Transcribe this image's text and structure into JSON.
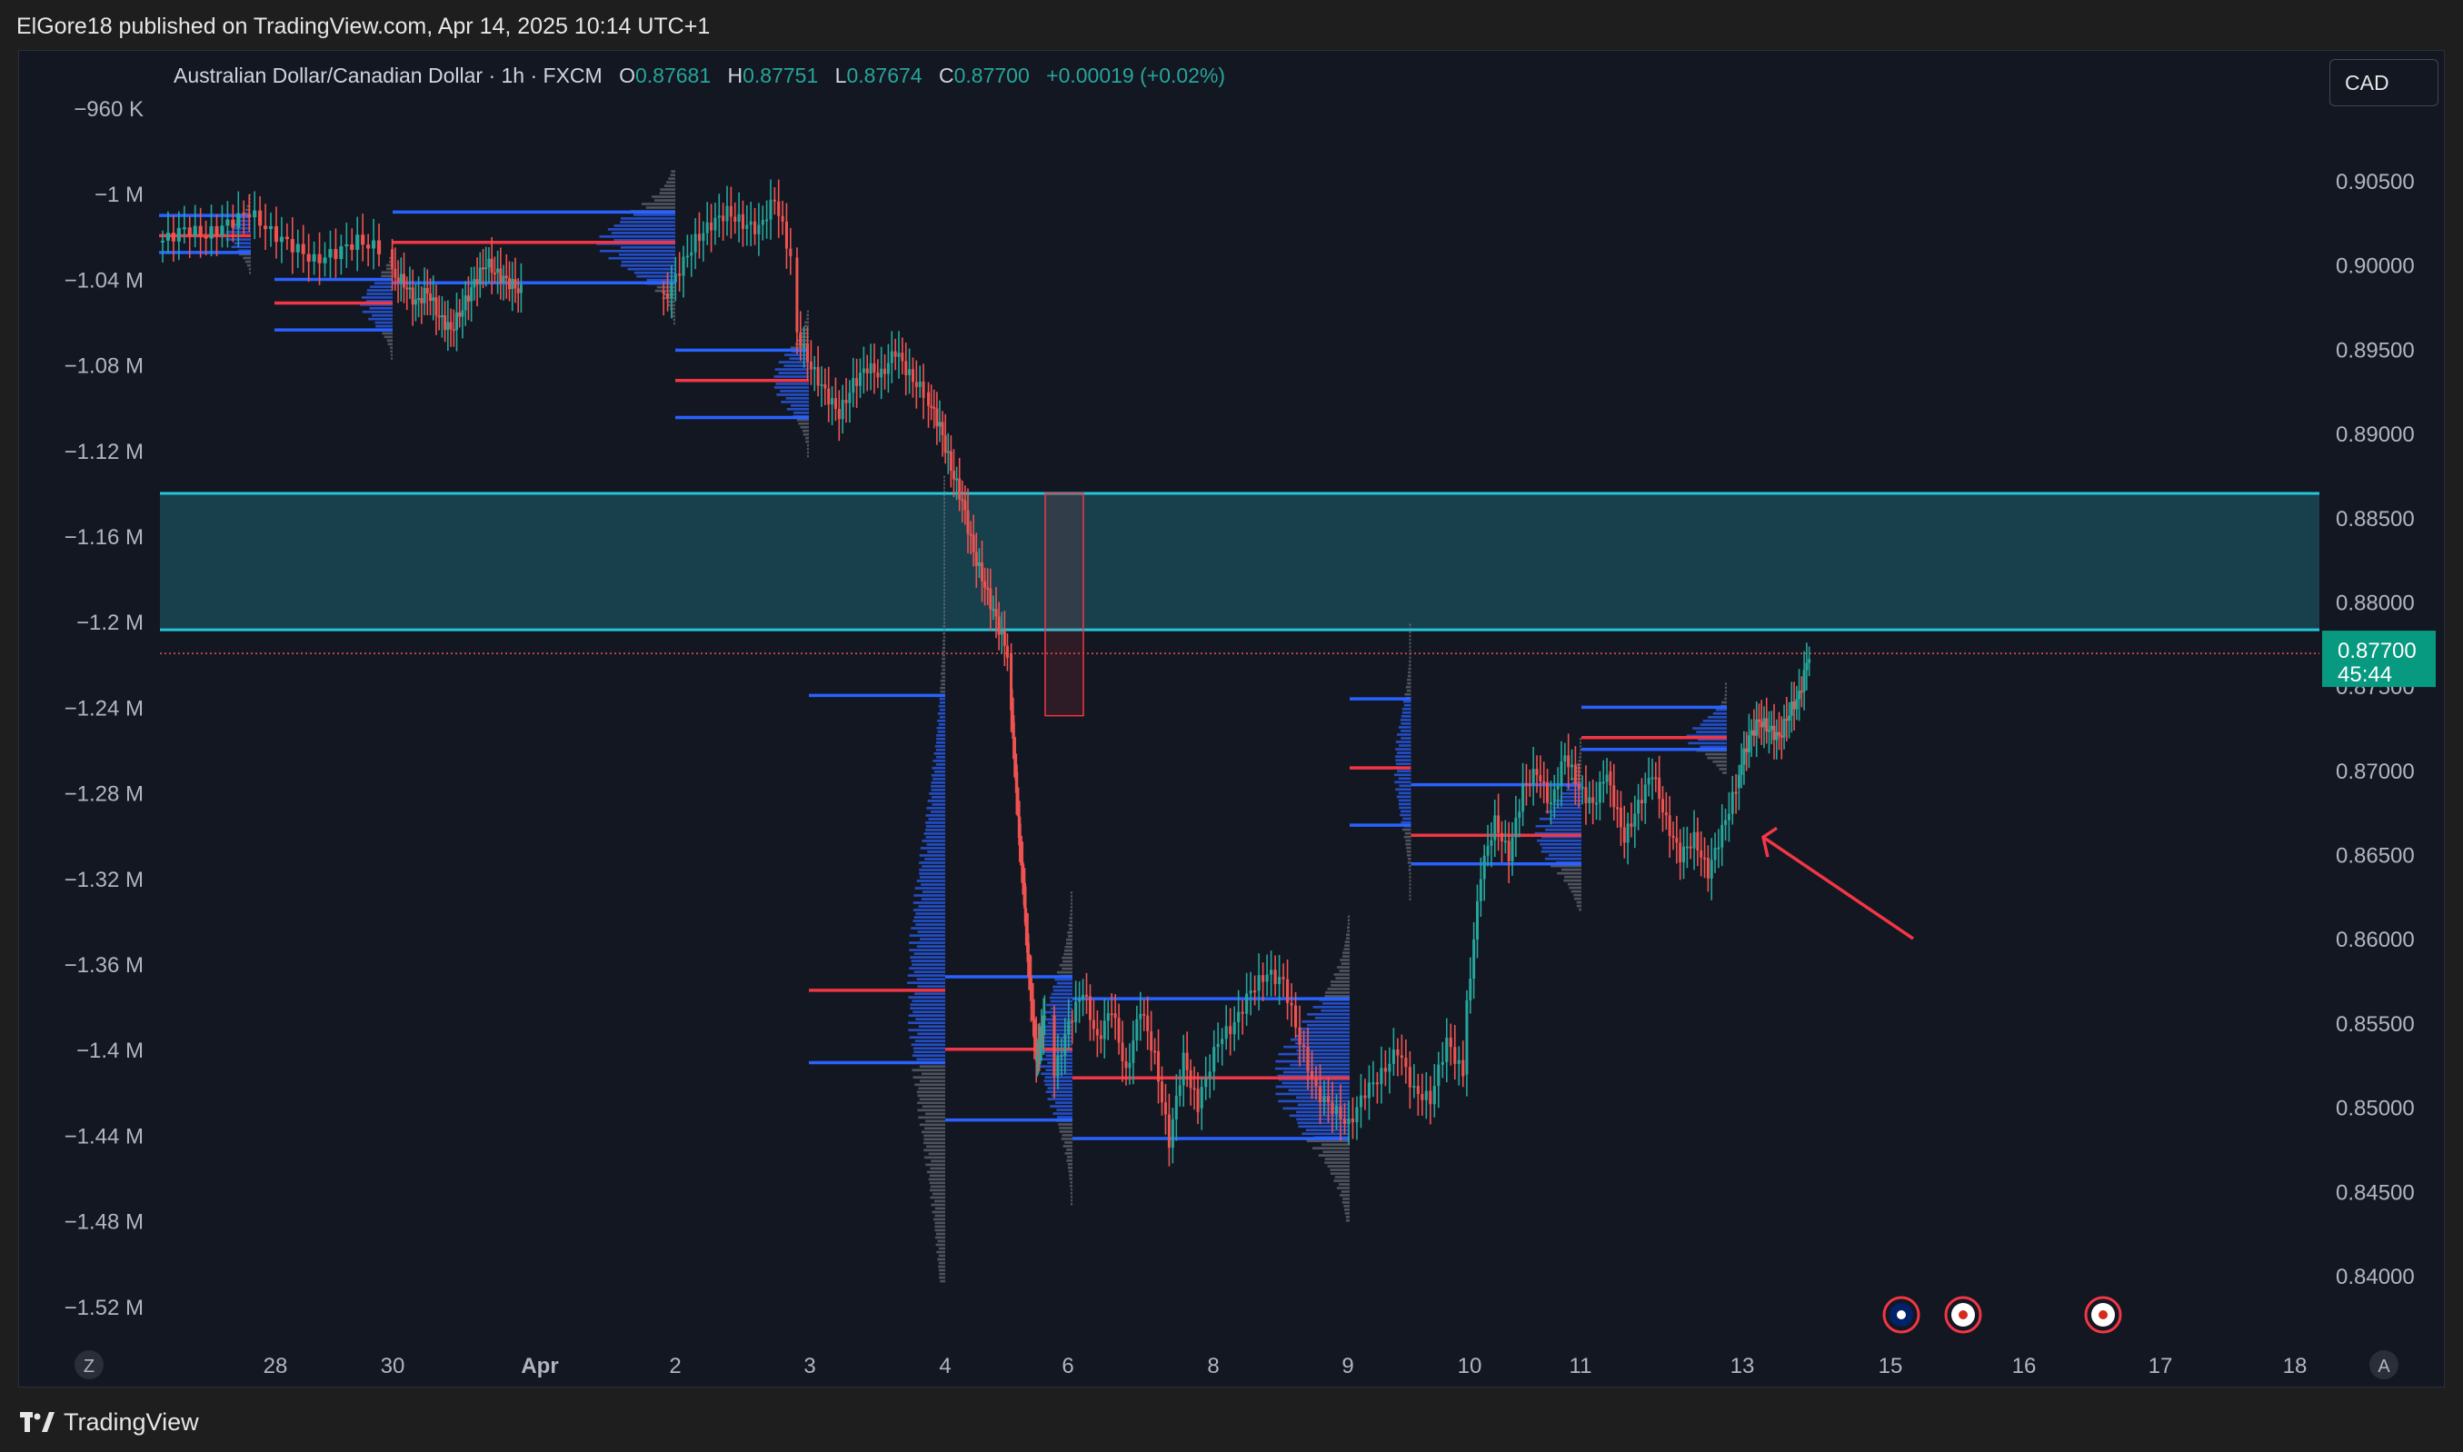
{
  "header": {
    "published_text": "ElGore18 published on TradingView.com, Apr 14, 2025 10:14 UTC+1"
  },
  "legend": {
    "symbol": "Australian Dollar/Canadian Dollar · 1h · FXCM",
    "open_label": "O",
    "open": "0.87681",
    "high_label": "H",
    "high": "0.87751",
    "low_label": "L",
    "low": "0.87674",
    "close_label": "C",
    "close": "0.87700",
    "change": "+0.00019 (+0.02%)"
  },
  "currency_button": {
    "label": "CAD"
  },
  "price_tag": {
    "price": "0.87700",
    "countdown": "45:44"
  },
  "footer": {
    "brand": "TradingView"
  },
  "axis_buttons": {
    "left": "Z",
    "right": "A"
  },
  "icons": [
    "australia-flag-icon",
    "canada-flag-icon",
    "canada-flag-icon",
    "tradingview-logo-icon"
  ],
  "colors": {
    "up": "#26a69a",
    "down": "#ef5350",
    "zone": "#26c6da",
    "level_red": "#f23645",
    "level_blue": "#2962ff",
    "price_tag": "#089981",
    "arrow": "#f23645"
  },
  "chart_data": {
    "type": "candlestick",
    "symbol": "AUDCAD",
    "timeframe": "1h",
    "right_axis": {
      "ticks": [
        "0.90500",
        "0.90000",
        "0.89500",
        "0.89000",
        "0.88500",
        "0.88000",
        "0.87500",
        "0.87000",
        "0.86500",
        "0.86000",
        "0.85500",
        "0.85000",
        "0.84500",
        "0.84000"
      ],
      "range": [
        0.8365,
        0.9082
      ]
    },
    "left_axis": {
      "ticks": [
        "−960 K",
        "−1 M",
        "−1.04 M",
        "−1.08 M",
        "−1.12 M",
        "−1.16 M",
        "−1.2 M",
        "−1.24 M",
        "−1.28 M",
        "−1.32 M",
        "−1.36 M",
        "−1.4 M",
        "−1.44 M",
        "−1.48 M",
        "−1.52 M"
      ]
    },
    "x_axis": {
      "ticks": [
        "28",
        "30",
        "Apr",
        "2",
        "3",
        "4",
        "6",
        "8",
        "9",
        "10",
        "11",
        "13",
        "15",
        "16",
        "17",
        "18"
      ]
    },
    "current_price": 0.877,
    "zone": {
      "top": 0.8865,
      "bottom": 0.8784
    },
    "price_path": [
      [
        0.9015,
        0.9022,
        0.9018,
        0.9025,
        0.9032,
        0.902,
        0.9012,
        0.9003,
        0.9008,
        0.9015,
        0.901
      ],
      [
        0.8995,
        0.899,
        0.8978,
        0.8985,
        0.897,
        0.8962,
        0.8975,
        0.899,
        0.9002,
        0.8995,
        0.899,
        0.8985
      ],
      [
        0.898,
        0.8998,
        0.9015,
        0.9025,
        0.9032,
        0.9025,
        0.9022,
        0.904,
        0.9005
      ],
      [
        0.896,
        0.894,
        0.8925,
        0.8912,
        0.893,
        0.894,
        0.8935,
        0.895,
        0.8935,
        0.8925
      ],
      [
        0.892,
        0.8905,
        0.888,
        0.886,
        0.883,
        0.881,
        0.879,
        0.877
      ],
      [
        0.874,
        0.87,
        0.866,
        0.863,
        0.859,
        0.856,
        0.853,
        0.854,
        0.8555
      ],
      [
        0.852,
        0.855,
        0.857,
        0.854,
        0.856,
        0.852,
        0.856,
        0.853,
        0.848,
        0.853,
        0.85
      ],
      [
        0.851,
        0.854,
        0.855,
        0.857,
        0.858,
        0.8575,
        0.854,
        0.851,
        0.85,
        0.849,
        0.851,
        0.852,
        0.8535,
        0.851,
        0.8505,
        0.854,
        0.852
      ],
      [
        0.856,
        0.864,
        0.867,
        0.865,
        0.869,
        0.87,
        0.868,
        0.871,
        0.869,
        0.868,
        0.87
      ],
      [
        0.869,
        0.866,
        0.868,
        0.87,
        0.867,
        0.865,
        0.866,
        0.864,
        0.8665,
        0.869
      ],
      [
        0.87,
        0.872,
        0.873,
        0.8725,
        0.872,
        0.8735,
        0.8745,
        0.877
      ]
    ],
    "volume_profiles": [
      {
        "x0": "Mar 27",
        "x1": "Mar 29",
        "vah": 0.903,
        "poc": 0.9018,
        "val": 0.9008
      },
      {
        "x0": "Mar 30",
        "x1": "Apr 1",
        "vah": 0.8992,
        "poc": 0.8978,
        "val": 0.8962
      },
      {
        "x0": "Apr 1",
        "x1": "Apr 3",
        "vah": 0.9032,
        "poc": 0.9014,
        "val": 0.899
      },
      {
        "x0": "Apr 3",
        "x1": "Apr 4",
        "vah": 0.895,
        "poc": 0.8932,
        "val": 0.891
      },
      {
        "x0": "Apr 4",
        "x1": "Apr 6",
        "vah": 0.8745,
        "poc": 0.857,
        "val": 0.8527
      },
      {
        "x0": "Apr 6",
        "x1": "Apr 8",
        "vah": 0.8578,
        "poc": 0.8535,
        "val": 0.8493
      },
      {
        "x0": "Apr 8",
        "x1": "Apr 10",
        "vah": 0.8565,
        "poc": 0.8518,
        "val": 0.8482
      },
      {
        "x0": "Apr 10",
        "x1": "Apr 11",
        "vah": 0.8743,
        "poc": 0.8702,
        "val": 0.8668
      },
      {
        "x0": "Apr 11",
        "x1": "Apr 13",
        "vah": 0.8692,
        "poc": 0.8662,
        "val": 0.8645
      },
      {
        "x0": "Apr 13",
        "x1": "Apr 14",
        "vah": 0.8738,
        "poc": 0.872,
        "val": 0.8713
      }
    ],
    "annotation": {
      "type": "arrow",
      "points_to": 0.8662
    }
  }
}
